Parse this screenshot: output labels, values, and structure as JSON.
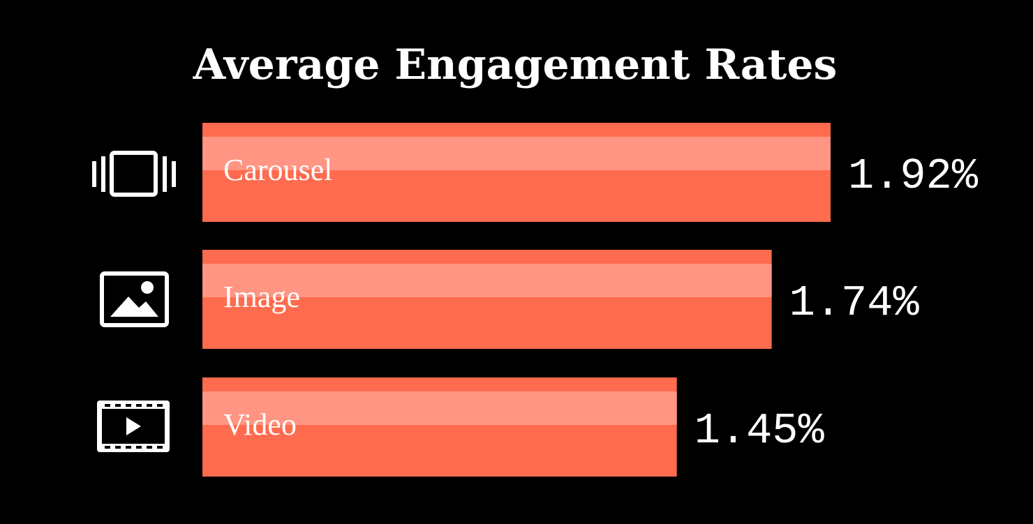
{
  "chart_data": {
    "type": "bar",
    "orientation": "horizontal",
    "title": "Average Engagement Rates",
    "categories": [
      "Carousel",
      "Image",
      "Video"
    ],
    "values": [
      1.92,
      1.74,
      1.45
    ],
    "value_labels": [
      "1.92%",
      "1.74%",
      "1.45%"
    ],
    "icons": [
      "carousel-icon",
      "image-icon",
      "video-icon"
    ],
    "xlim": [
      0,
      1.92
    ],
    "grid": false,
    "legend": "none"
  },
  "colors": {
    "background": "#000000",
    "bar": "#ff6b4f",
    "bar_highlight": "#ff9582",
    "text": "#ffffff"
  }
}
